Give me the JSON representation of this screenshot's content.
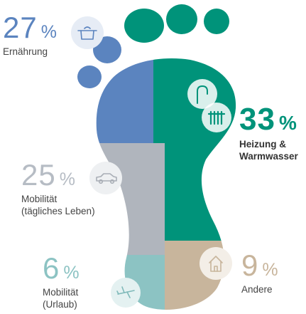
{
  "chart_data": {
    "type": "pie",
    "title": "",
    "unit": "%",
    "categories": [
      "Ernährung",
      "Heizung & Warmwasser",
      "Mobilität (tägliches Leben)",
      "Mobilität (Urlaub)",
      "Andere"
    ],
    "values": [
      27,
      33,
      25,
      6,
      9
    ],
    "segments": [
      {
        "key": "ern",
        "value": "27",
        "unit": "%",
        "label_lines": [
          "Ernährung"
        ],
        "color": "#5b84bf",
        "icon": "pot-icon"
      },
      {
        "key": "hzg",
        "value": "33",
        "unit": "%",
        "label_lines": [
          "Heizung &",
          "Warmwasser"
        ],
        "color": "#00937a",
        "icon": "radiator-icon"
      },
      {
        "key": "mob",
        "value": "25",
        "unit": "%",
        "label_lines": [
          "Mobilität",
          "(tägliches Leben)"
        ],
        "color": "#b0b5bd",
        "icon": "car-icon"
      },
      {
        "key": "url",
        "value": "6",
        "unit": "%",
        "label_lines": [
          "Mobilität",
          "(Urlaub)"
        ],
        "color": "#8cc3c3",
        "icon": "airplane-icon"
      },
      {
        "key": "and",
        "value": "9",
        "unit": "%",
        "label_lines": [
          "Andere"
        ],
        "color": "#c8b59c",
        "icon": "house-icon"
      }
    ],
    "extra_icons": [
      {
        "name": "faucet-icon"
      }
    ]
  }
}
